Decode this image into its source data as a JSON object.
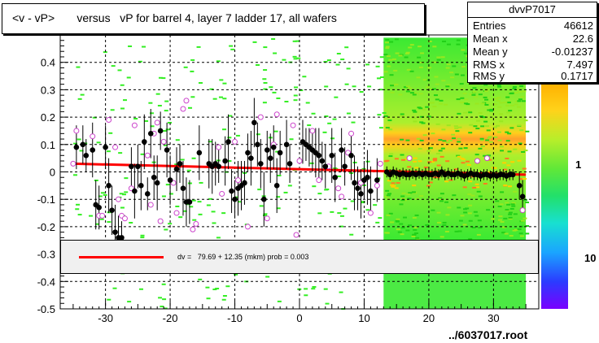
{
  "title": "<v - vP>       versus   vP for barrel 4, layer 7 ladder 17, all wafers",
  "footer": "../6037017.root",
  "stats": {
    "name": "dvvP7017",
    "rows": [
      {
        "key": "Entries",
        "value": "46612"
      },
      {
        "key": "Mean x",
        "value": "22.6"
      },
      {
        "key": "Mean y",
        "value": "-0.01237"
      },
      {
        "key": "RMS x",
        "value": "7.497"
      },
      {
        "key": "RMS y",
        "value": "0.1717"
      }
    ]
  },
  "fit": {
    "text": "dv =   79.69 + 12.35 (mkm) prob = 0.003",
    "color": "#ff0000"
  },
  "colors": {
    "frame": "#000000",
    "grid": "#000000",
    "fit_line": "#ff0000",
    "profile_filled": "#000000",
    "profile_open": "#cc44cc",
    "scatter_green": "#33ee22"
  },
  "chart_data": {
    "type": "scatter",
    "xlim": [
      -37,
      37
    ],
    "ylim": [
      -0.5,
      0.5
    ],
    "xticks": [
      -30,
      -20,
      -10,
      0,
      10,
      20,
      30
    ],
    "yticks": [
      -0.5,
      -0.4,
      -0.3,
      -0.2,
      -0.1,
      0,
      0.1,
      0.2,
      0.3,
      0.4
    ],
    "ytick_labels": [
      "-0.5",
      "-0.4",
      "-0.3",
      "-0.2",
      "-0.1",
      "0",
      "0.1",
      "0.2",
      "0.3",
      "0.4"
    ],
    "grid": true,
    "colorbar_labels": [
      "1",
      "10"
    ],
    "fit_line": {
      "x": [
        -35,
        35
      ],
      "y": [
        0.03,
        -0.01
      ]
    },
    "profile_filled": [
      {
        "x": -34.5,
        "y": 0.09,
        "e": 0.08
      },
      {
        "x": -33.5,
        "y": 0.1,
        "e": 0.07
      },
      {
        "x": -33,
        "y": 0.06,
        "e": 0.06
      },
      {
        "x": -32,
        "y": 0.08,
        "e": 0.1
      },
      {
        "x": -31.5,
        "y": -0.12,
        "e": 0.09
      },
      {
        "x": -31,
        "y": -0.13,
        "e": 0.08
      },
      {
        "x": -30,
        "y": 0.09,
        "e": 0.08
      },
      {
        "x": -29.5,
        "y": -0.05,
        "e": 0.1
      },
      {
        "x": -29,
        "y": -0.14,
        "e": 0.09
      },
      {
        "x": -28.5,
        "y": -0.22,
        "e": 0.1
      },
      {
        "x": -28,
        "y": -0.24,
        "e": 0.08
      },
      {
        "x": -27.5,
        "y": -0.24,
        "e": 0.06
      },
      {
        "x": -26,
        "y": 0.02,
        "e": 0.07
      },
      {
        "x": -25.5,
        "y": -0.07,
        "e": 0.1
      },
      {
        "x": -25,
        "y": 0.02,
        "e": 0.08
      },
      {
        "x": -24.5,
        "y": -0.05,
        "e": 0.09
      },
      {
        "x": -24,
        "y": 0.11,
        "e": 0.1
      },
      {
        "x": -23.5,
        "y": -0.08,
        "e": 0.06
      },
      {
        "x": -23,
        "y": 0.14,
        "e": 0.09
      },
      {
        "x": -22.5,
        "y": -0.02,
        "e": 0.08
      },
      {
        "x": -22,
        "y": -0.04,
        "e": 0.1
      },
      {
        "x": -21.5,
        "y": 0.15,
        "e": 0.07
      },
      {
        "x": -20.5,
        "y": 0.08,
        "e": 0.1
      },
      {
        "x": -20,
        "y": -0.03,
        "e": 0.09
      },
      {
        "x": -19,
        "y": 0.01,
        "e": 0.08
      },
      {
        "x": -18.5,
        "y": 0.03,
        "e": 0.07
      },
      {
        "x": -18,
        "y": -0.06,
        "e": 0.1
      },
      {
        "x": -17.5,
        "y": -0.11,
        "e": 0.09
      },
      {
        "x": -17,
        "y": -0.11,
        "e": 0.08
      },
      {
        "x": -15.5,
        "y": 0.07,
        "e": 0.1
      },
      {
        "x": -14,
        "y": 0.03,
        "e": 0.09
      },
      {
        "x": -13.5,
        "y": 0.02,
        "e": 0.1
      },
      {
        "x": -13,
        "y": 0.03,
        "e": 0.08
      },
      {
        "x": -12.5,
        "y": 0.02,
        "e": 0.06
      },
      {
        "x": -11.5,
        "y": 0.04,
        "e": 0.09
      },
      {
        "x": -11,
        "y": 0.11,
        "e": 0.1
      },
      {
        "x": -10.5,
        "y": -0.07,
        "e": 0.08
      },
      {
        "x": -10,
        "y": -0.1,
        "e": 0.07
      },
      {
        "x": -9.5,
        "y": -0.06,
        "e": 0.1
      },
      {
        "x": -9,
        "y": -0.05,
        "e": 0.09
      },
      {
        "x": -8.5,
        "y": -0.04,
        "e": 0.08
      },
      {
        "x": -8,
        "y": 0.07,
        "e": 0.07
      },
      {
        "x": -7.5,
        "y": 0.05,
        "e": 0.1
      },
      {
        "x": -7,
        "y": 0.18,
        "e": 0.09
      },
      {
        "x": -6.5,
        "y": 0.1,
        "e": 0.08
      },
      {
        "x": -6,
        "y": 0.03,
        "e": 0.09
      },
      {
        "x": -5.5,
        "y": -0.1,
        "e": 0.1
      },
      {
        "x": -5,
        "y": 0.08,
        "e": 0.07
      },
      {
        "x": -4.5,
        "y": 0.05,
        "e": 0.09
      },
      {
        "x": -4,
        "y": 0.09,
        "e": 0.08
      },
      {
        "x": -3.5,
        "y": -0.05,
        "e": 0.1
      },
      {
        "x": -3,
        "y": 0.07,
        "e": 0.08
      },
      {
        "x": -2,
        "y": 0.1,
        "e": 0.09
      },
      {
        "x": -1.5,
        "y": 0.03,
        "e": 0.07
      },
      {
        "x": 0.5,
        "y": 0.11,
        "e": 0.08
      },
      {
        "x": 1,
        "y": 0.1,
        "e": 0.06
      },
      {
        "x": 1.5,
        "y": 0.09,
        "e": 0.07
      },
      {
        "x": 2,
        "y": 0.08,
        "e": 0.08
      },
      {
        "x": 2.5,
        "y": 0.07,
        "e": 0.09
      },
      {
        "x": 3,
        "y": 0.06,
        "e": 0.1
      },
      {
        "x": 3.5,
        "y": 0.04,
        "e": 0.07
      },
      {
        "x": 4,
        "y": 0.02,
        "e": 0.08
      },
      {
        "x": 5,
        "y": 0.06,
        "e": 0.1
      },
      {
        "x": 5.5,
        "y": -0.02,
        "e": 0.09
      },
      {
        "x": 6.5,
        "y": 0.08,
        "e": 0.08
      },
      {
        "x": 7,
        "y": 0.02,
        "e": 0.07
      },
      {
        "x": 8,
        "y": 0.06,
        "e": 0.09
      },
      {
        "x": 8.5,
        "y": -0.04,
        "e": 0.1
      },
      {
        "x": 9,
        "y": -0.06,
        "e": 0.08
      },
      {
        "x": 9.5,
        "y": -0.08,
        "e": 0.09
      },
      {
        "x": 10,
        "y": -0.03,
        "e": 0.07
      },
      {
        "x": 10.5,
        "y": -0.02,
        "e": 0.1
      },
      {
        "x": 11,
        "y": -0.07,
        "e": 0.09
      },
      {
        "x": 12,
        "y": -0.03,
        "e": 0.08
      },
      {
        "x": 13.5,
        "y": 0,
        "e": 0.02
      },
      {
        "x": 14,
        "y": -0.01,
        "e": 0.02
      },
      {
        "x": 14.5,
        "y": 0,
        "e": 0.02
      },
      {
        "x": 15,
        "y": -0.005,
        "e": 0.02
      },
      {
        "x": 15.5,
        "y": -0.01,
        "e": 0.02
      },
      {
        "x": 16,
        "y": -0.005,
        "e": 0.02
      },
      {
        "x": 16.5,
        "y": -0.01,
        "e": 0.02
      },
      {
        "x": 17,
        "y": -0.01,
        "e": 0.02
      },
      {
        "x": 17.5,
        "y": -0.005,
        "e": 0.02
      },
      {
        "x": 18,
        "y": -0.01,
        "e": 0.02
      },
      {
        "x": 18.5,
        "y": -0.005,
        "e": 0.02
      },
      {
        "x": 19,
        "y": -0.01,
        "e": 0.02
      },
      {
        "x": 19.5,
        "y": -0.005,
        "e": 0.02
      },
      {
        "x": 20,
        "y": -0.01,
        "e": 0.02
      },
      {
        "x": 20.5,
        "y": -0.01,
        "e": 0.02
      },
      {
        "x": 21,
        "y": -0.005,
        "e": 0.02
      },
      {
        "x": 21.5,
        "y": -0.01,
        "e": 0.02
      },
      {
        "x": 22,
        "y": 0,
        "e": 0.02
      },
      {
        "x": 22.5,
        "y": -0.01,
        "e": 0.02
      },
      {
        "x": 23,
        "y": -0.005,
        "e": 0.02
      },
      {
        "x": 23.5,
        "y": -0.01,
        "e": 0.02
      },
      {
        "x": 24,
        "y": -0.01,
        "e": 0.02
      },
      {
        "x": 24.5,
        "y": -0.005,
        "e": 0.02
      },
      {
        "x": 25,
        "y": -0.01,
        "e": 0.02
      },
      {
        "x": 25.5,
        "y": -0.015,
        "e": 0.02
      },
      {
        "x": 26,
        "y": -0.01,
        "e": 0.02
      },
      {
        "x": 26.5,
        "y": -0.005,
        "e": 0.02
      },
      {
        "x": 27,
        "y": -0.01,
        "e": 0.02
      },
      {
        "x": 27.5,
        "y": -0.01,
        "e": 0.02
      },
      {
        "x": 28,
        "y": -0.015,
        "e": 0.02
      },
      {
        "x": 28.5,
        "y": -0.01,
        "e": 0.02
      },
      {
        "x": 29,
        "y": -0.01,
        "e": 0.02
      },
      {
        "x": 29.5,
        "y": -0.015,
        "e": 0.02
      },
      {
        "x": 30,
        "y": -0.01,
        "e": 0.02
      },
      {
        "x": 30.5,
        "y": -0.015,
        "e": 0.02
      },
      {
        "x": 31,
        "y": -0.01,
        "e": 0.02
      },
      {
        "x": 31.5,
        "y": -0.01,
        "e": 0.02
      },
      {
        "x": 32,
        "y": -0.015,
        "e": 0.02
      },
      {
        "x": 32.5,
        "y": -0.01,
        "e": 0.02
      },
      {
        "x": 33,
        "y": -0.01,
        "e": 0.02
      },
      {
        "x": 34,
        "y": -0.05,
        "e": 0.05
      },
      {
        "x": 34.5,
        "y": -0.09,
        "e": 0.06
      }
    ],
    "profile_open": [
      {
        "x": -35,
        "y": 0.03
      },
      {
        "x": -34.5,
        "y": 0.15
      },
      {
        "x": -32,
        "y": 0.13
      },
      {
        "x": -31,
        "y": -0.16
      },
      {
        "x": -30.5,
        "y": -0.16
      },
      {
        "x": -29.5,
        "y": 0.19
      },
      {
        "x": -28.5,
        "y": 0.09
      },
      {
        "x": -28,
        "y": -0.1
      },
      {
        "x": -27.5,
        "y": -0.16
      },
      {
        "x": -27,
        "y": -0.17
      },
      {
        "x": -26,
        "y": -0.06
      },
      {
        "x": -25.5,
        "y": 0.17
      },
      {
        "x": -25,
        "y": -0.28
      },
      {
        "x": -23.5,
        "y": 0.06
      },
      {
        "x": -23,
        "y": -0.12
      },
      {
        "x": -22.5,
        "y": 0.14
      },
      {
        "x": -22,
        "y": 0.18
      },
      {
        "x": -21.5,
        "y": -0.18
      },
      {
        "x": -21,
        "y": 0.11
      },
      {
        "x": -19.5,
        "y": -0.04
      },
      {
        "x": -19,
        "y": -0.15
      },
      {
        "x": -18,
        "y": 0.23
      },
      {
        "x": -17.5,
        "y": 0.26
      },
      {
        "x": -16.5,
        "y": -0.21
      },
      {
        "x": -16,
        "y": -0.19
      },
      {
        "x": -12.5,
        "y": 0.09
      },
      {
        "x": -12,
        "y": -0.08
      },
      {
        "x": -10,
        "y": 0.11
      },
      {
        "x": -9.5,
        "y": -0.03
      },
      {
        "x": -8,
        "y": -0.2
      },
      {
        "x": -6,
        "y": 0.2
      },
      {
        "x": -5,
        "y": -0.17
      },
      {
        "x": -4,
        "y": 0.1
      },
      {
        "x": -3.5,
        "y": 0.21
      },
      {
        "x": -1,
        "y": 0.17
      },
      {
        "x": -0.5,
        "y": -0.23
      },
      {
        "x": 0,
        "y": 0.04
      },
      {
        "x": 2,
        "y": 0.15
      },
      {
        "x": 3,
        "y": -0.03
      },
      {
        "x": 4.5,
        "y": 0.02
      },
      {
        "x": 6,
        "y": -0.06
      },
      {
        "x": 6.5,
        "y": -0.09
      },
      {
        "x": 7.5,
        "y": 0.07
      },
      {
        "x": 8,
        "y": 0.14
      },
      {
        "x": 9.5,
        "y": -0.04
      },
      {
        "x": 11,
        "y": -0.15
      },
      {
        "x": 12,
        "y": -0.05
      },
      {
        "x": 12.5,
        "y": 0.03
      },
      {
        "x": 17,
        "y": 0.05
      },
      {
        "x": 27.5,
        "y": 0.04
      },
      {
        "x": 29,
        "y": 0.05
      },
      {
        "x": 34.5,
        "y": -0.14
      }
    ]
  }
}
